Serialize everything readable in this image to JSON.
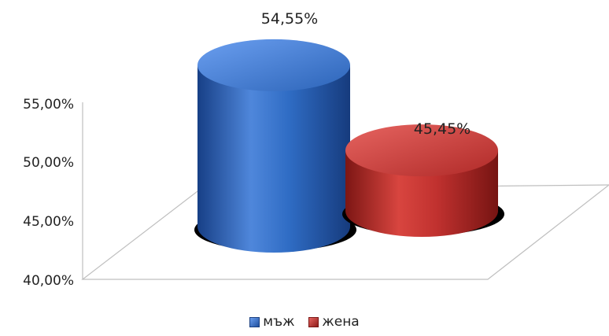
{
  "chart_data": {
    "type": "bar",
    "subtype": "3d-cylinder",
    "categories": [
      "мъж",
      "жена"
    ],
    "values": [
      54.55,
      45.45
    ],
    "data_labels": [
      "54,55%",
      "45,45%"
    ],
    "ytick_labels": [
      "40,00%",
      "45,00%",
      "50,00%",
      "55,00%"
    ],
    "ytick_values": [
      40,
      45,
      50,
      55
    ],
    "ylim": [
      40,
      55
    ],
    "grid": false,
    "legend": {
      "position": "bottom",
      "entries": [
        {
          "label": "мъж",
          "color": "#2f6cc4"
        },
        {
          "label": "жена",
          "color": "#c0312f"
        }
      ]
    },
    "colors": {
      "male": "#2f6cc4",
      "male_dark": "#173f86",
      "male_light": "#5a92e6",
      "female": "#c0312f",
      "female_dark": "#7c1614",
      "female_light": "#e25a56"
    }
  }
}
